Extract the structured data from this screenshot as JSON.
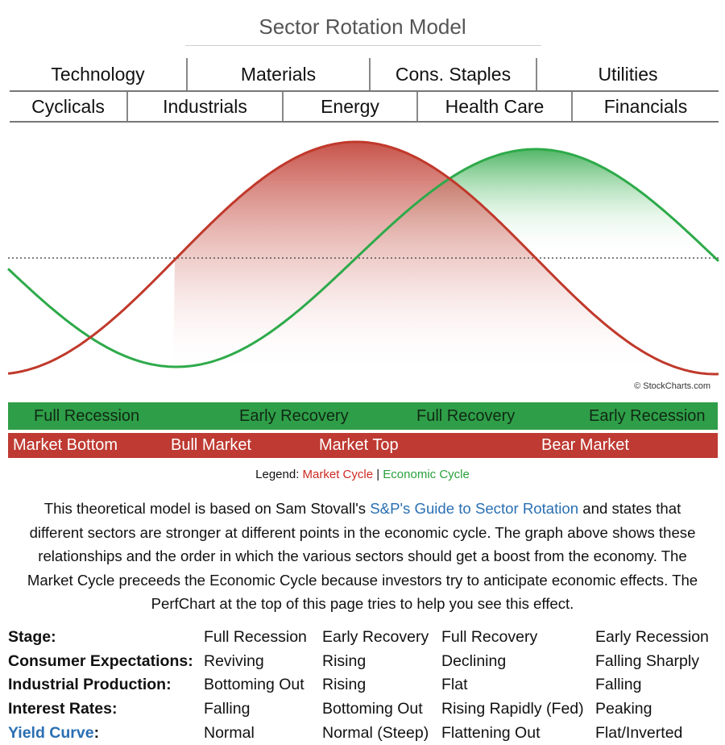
{
  "title": "Sector Rotation Model",
  "sectors_top": [
    "Technology",
    "Materials",
    "Cons. Staples",
    "Utilities"
  ],
  "sectors_bottom": [
    "Cyclicals",
    "Industrials",
    "Energy",
    "Health Care",
    "Financials"
  ],
  "copyright": "© StockCharts.com",
  "economic_stages": [
    "Full Recession",
    "Early Recovery",
    "Full Recovery",
    "Early Recession"
  ],
  "market_stages": [
    "Market Bottom",
    "Bull Market",
    "Market Top",
    "Bear Market"
  ],
  "legend": {
    "prefix": "Legend: ",
    "market": "Market Cycle",
    "separator": " | ",
    "economic": "Economic Cycle"
  },
  "colors": {
    "market_cycle": "#c0392b",
    "economic_cycle": "#2eaa4a",
    "economic_band": "#2f9e48",
    "market_band": "#be3a32",
    "link": "#2a6fb3"
  },
  "paragraph": {
    "before_link": "This theoretical model is based on Sam Stovall's ",
    "link_text": "S&P's Guide to Sector Rotation",
    "after_link": " and states that different sectors are stronger at different points in the economic cycle. The graph above shows these relationships and the order in which the various sectors should get a boost from the economy. The Market Cycle preceeds the Economic Cycle because investors try to anticipate economic effects. The PerfChart at the top of this page tries to help you see this effect."
  },
  "stage_table": [
    {
      "label": "Stage:",
      "values": [
        "Full Recession",
        "Early Recovery",
        "Full Recovery",
        "Early Recession"
      ]
    },
    {
      "label": "Consumer Expectations:",
      "values": [
        "Reviving",
        "Rising",
        "Declining",
        "Falling Sharply"
      ]
    },
    {
      "label": "Industrial Production:",
      "values": [
        "Bottoming Out",
        "Rising",
        "Flat",
        "Falling"
      ]
    },
    {
      "label": "Interest Rates:",
      "values": [
        "Falling",
        "Bottoming Out",
        "Rising Rapidly (Fed)",
        "Peaking"
      ]
    },
    {
      "label": "Yield Curve",
      "label_suffix": ":",
      "values": [
        "Normal",
        "Normal (Steep)",
        "Flattening Out",
        "Flat/Inverted"
      ]
    }
  ]
}
